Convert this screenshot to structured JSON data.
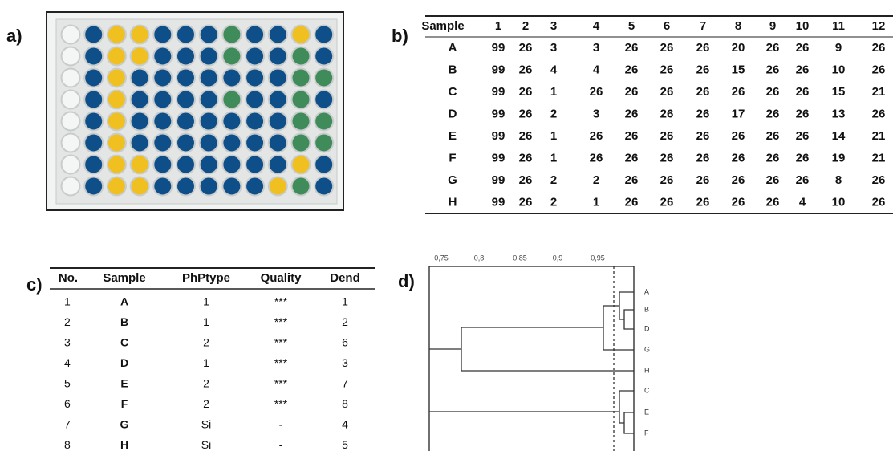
{
  "panels": {
    "a": {
      "label": "a)"
    },
    "b": {
      "label": "b)"
    },
    "c": {
      "label": "c)"
    },
    "d": {
      "label": "d)"
    }
  },
  "table_b": {
    "header": [
      "Sample",
      "1",
      "2",
      "3",
      "4",
      "5",
      "6",
      "7",
      "8",
      "9",
      "10",
      "11",
      "12"
    ],
    "rows": [
      [
        "A",
        "99",
        "26",
        "3",
        "3",
        "26",
        "26",
        "26",
        "20",
        "26",
        "26",
        "9",
        "26"
      ],
      [
        "B",
        "99",
        "26",
        "4",
        "4",
        "26",
        "26",
        "26",
        "15",
        "26",
        "26",
        "10",
        "26"
      ],
      [
        "C",
        "99",
        "26",
        "1",
        "26",
        "26",
        "26",
        "26",
        "26",
        "26",
        "26",
        "15",
        "21"
      ],
      [
        "D",
        "99",
        "26",
        "2",
        "3",
        "26",
        "26",
        "26",
        "17",
        "26",
        "26",
        "13",
        "26"
      ],
      [
        "E",
        "99",
        "26",
        "1",
        "26",
        "26",
        "26",
        "26",
        "26",
        "26",
        "26",
        "14",
        "21"
      ],
      [
        "F",
        "99",
        "26",
        "1",
        "26",
        "26",
        "26",
        "26",
        "26",
        "26",
        "26",
        "19",
        "21"
      ],
      [
        "G",
        "99",
        "26",
        "2",
        "2",
        "26",
        "26",
        "26",
        "26",
        "26",
        "26",
        "8",
        "26"
      ],
      [
        "H",
        "99",
        "26",
        "2",
        "1",
        "26",
        "26",
        "26",
        "26",
        "26",
        "4",
        "10",
        "26"
      ]
    ]
  },
  "table_c": {
    "header": [
      "No.",
      "Sample",
      "PhPtype",
      "Quality",
      "Dend"
    ],
    "rows": [
      [
        "1",
        "A",
        "1",
        "***",
        "1"
      ],
      [
        "2",
        "B",
        "1",
        "***",
        "2"
      ],
      [
        "3",
        "C",
        "2",
        "***",
        "6"
      ],
      [
        "4",
        "D",
        "1",
        "***",
        "3"
      ],
      [
        "5",
        "E",
        "2",
        "***",
        "7"
      ],
      [
        "6",
        "F",
        "2",
        "***",
        "8"
      ],
      [
        "7",
        "G",
        "Si",
        "-",
        "4"
      ],
      [
        "8",
        "H",
        "Si",
        "-",
        "5"
      ]
    ]
  },
  "dendrogram": {
    "axis_ticks": [
      "0,75",
      "0,8",
      "0,85",
      "0,9",
      "0,95"
    ],
    "leaves": [
      "A",
      "B",
      "D",
      "G",
      "H",
      "C",
      "E",
      "F"
    ]
  }
}
